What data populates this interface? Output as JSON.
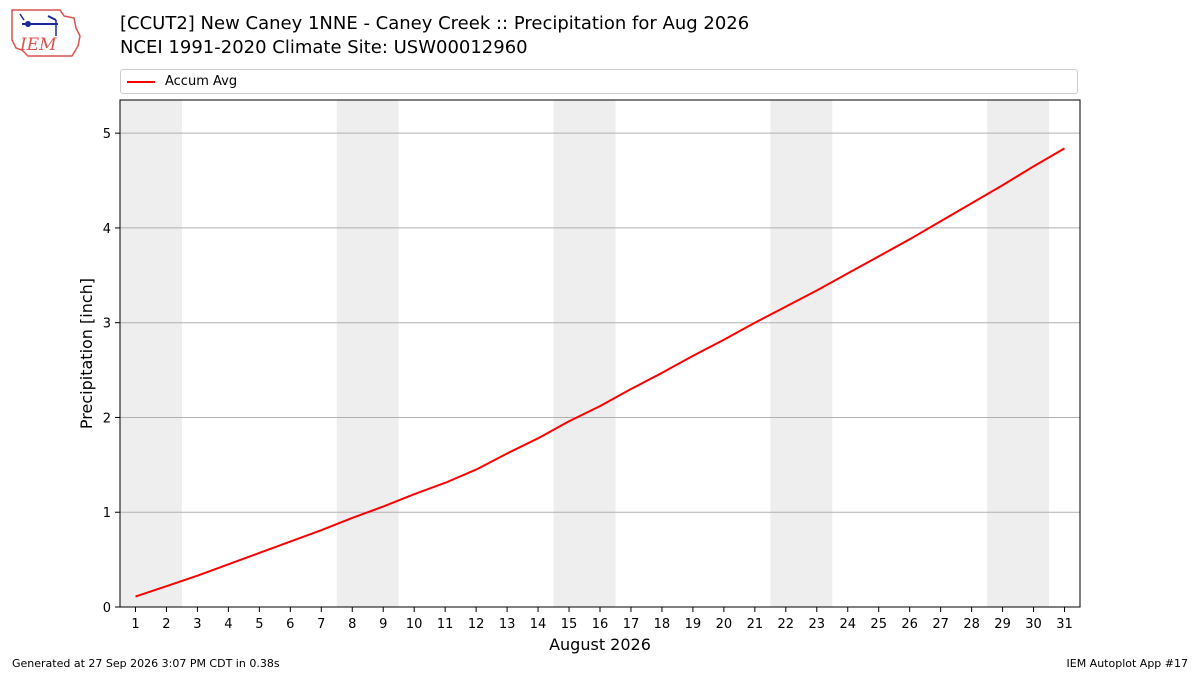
{
  "header": {
    "title_line1": "[CCUT2] New Caney 1NNE - Caney Creek :: Precipitation for Aug 2026",
    "title_line2": "NCEI 1991-2020 Climate Site: USW00012960",
    "logo_text": "IEM"
  },
  "footer": {
    "generated": "Generated at 27 Sep 2026 3:07 PM CDT in 0.38s",
    "app": "IEM Autoplot App #17"
  },
  "colors": {
    "line": "#ff0000",
    "weekend_band": "#eeeeee",
    "grid": "#b0b0b0",
    "logo": "#d9534f"
  },
  "chart_data": {
    "type": "line",
    "title": "[CCUT2] New Caney 1NNE - Caney Creek :: Precipitation for Aug 2026",
    "subtitle": "NCEI 1991-2020 Climate Site: USW00012960",
    "xlabel": "August 2026",
    "ylabel": "Precipitation [inch]",
    "xlim": [
      0.5,
      31.5
    ],
    "ylim": [
      0,
      5.35
    ],
    "x": [
      1,
      2,
      3,
      4,
      5,
      6,
      7,
      8,
      9,
      10,
      11,
      12,
      13,
      14,
      15,
      16,
      17,
      18,
      19,
      20,
      21,
      22,
      23,
      24,
      25,
      26,
      27,
      28,
      29,
      30,
      31
    ],
    "xticks": [
      "1",
      "2",
      "3",
      "4",
      "5",
      "6",
      "7",
      "8",
      "9",
      "10",
      "11",
      "12",
      "13",
      "14",
      "15",
      "16",
      "17",
      "18",
      "19",
      "20",
      "21",
      "22",
      "23",
      "24",
      "25",
      "26",
      "27",
      "28",
      "29",
      "30",
      "31"
    ],
    "yticks": [
      0,
      1,
      2,
      3,
      4,
      5
    ],
    "grid": "horizontal",
    "legend_position": "top",
    "weekend_bands": [
      [
        0.5,
        2.5
      ],
      [
        7.5,
        9.5
      ],
      [
        14.5,
        16.5
      ],
      [
        21.5,
        23.5
      ],
      [
        28.5,
        30.5
      ]
    ],
    "series": [
      {
        "name": "Accum Avg",
        "color": "#ff0000",
        "values": [
          0.11,
          0.22,
          0.33,
          0.45,
          0.57,
          0.69,
          0.81,
          0.94,
          1.06,
          1.19,
          1.31,
          1.45,
          1.62,
          1.78,
          1.96,
          2.12,
          2.3,
          2.47,
          2.65,
          2.82,
          3.0,
          3.17,
          3.34,
          3.52,
          3.7,
          3.88,
          4.07,
          4.26,
          4.45,
          4.65,
          4.84
        ]
      }
    ]
  }
}
